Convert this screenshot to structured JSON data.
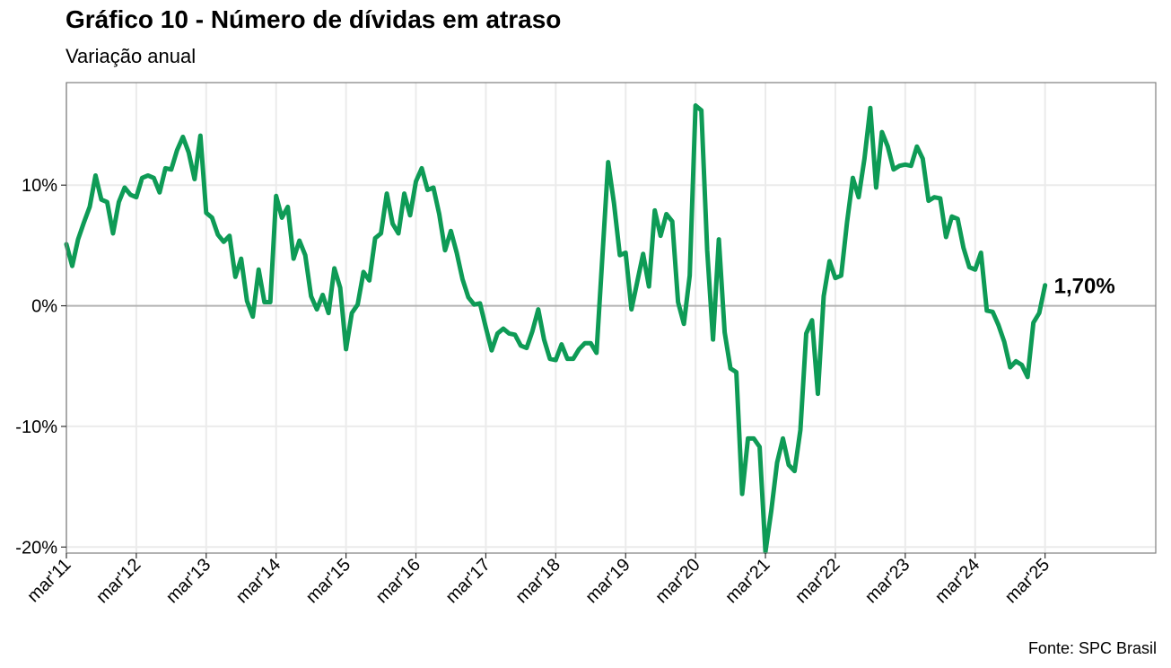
{
  "header": {
    "title": "Gráfico 10 - Número de dívidas em atraso",
    "subtitle": "Variação anual"
  },
  "footer": {
    "source": "Fonte: SPC Brasil"
  },
  "colors": {
    "line": "#0e9b56",
    "zero_line": "#b3b3b3",
    "grid": "#ebebeb",
    "frame": "#7f7f7f"
  },
  "chart_data": {
    "type": "line",
    "title": "Gráfico 10 - Número de dívidas em atraso",
    "subtitle": "Variação anual",
    "xlabel": "",
    "ylabel": "",
    "x_start": "2011-03",
    "x_end": "2025-03",
    "xlim": [
      "2011-03",
      "2026-10"
    ],
    "ylim": [
      -20.5,
      18.5
    ],
    "y_ticks": [
      10,
      0,
      -10,
      -20
    ],
    "y_tick_labels": [
      "10%",
      "0%",
      "-10%",
      "-20%"
    ],
    "x_ticks": [
      "2011-03",
      "2012-03",
      "2013-03",
      "2014-03",
      "2015-03",
      "2016-03",
      "2017-03",
      "2018-03",
      "2019-03",
      "2020-03",
      "2021-03",
      "2022-03",
      "2023-03",
      "2024-03",
      "2025-03"
    ],
    "x_tick_labels": [
      "mar'11",
      "mar'12",
      "mar'13",
      "mar'14",
      "mar'15",
      "mar'16",
      "mar'17",
      "mar'18",
      "mar'19",
      "mar'20",
      "mar'21",
      "mar'22",
      "mar'23",
      "mar'24",
      "mar'25"
    ],
    "grid": true,
    "end_label": "1,70%",
    "series": [
      {
        "values": [
          5.1,
          3.3,
          5.5,
          6.9,
          8.2,
          10.8,
          8.8,
          8.6,
          6.0,
          8.6,
          9.8,
          9.2,
          9.0,
          10.6,
          10.8,
          10.6,
          9.4,
          11.4,
          11.3,
          12.9,
          14.0,
          12.7,
          10.5,
          14.1,
          7.7,
          7.3,
          5.9,
          5.3,
          5.8,
          2.4,
          3.9,
          0.4,
          -0.9,
          3.0,
          0.3,
          0.3,
          9.1,
          7.3,
          8.2,
          3.9,
          5.4,
          4.2,
          0.8,
          -0.3,
          0.9,
          -0.6,
          3.1,
          1.5,
          -3.6,
          -0.6,
          0.1,
          2.8,
          2.1,
          5.6,
          6.0,
          9.3,
          6.8,
          6.0,
          9.3,
          7.5,
          10.3,
          11.4,
          9.6,
          9.8,
          7.6,
          4.6,
          6.2,
          4.4,
          2.2,
          0.7,
          0.1,
          0.2,
          -1.8,
          -3.7,
          -2.3,
          -1.9,
          -2.3,
          -2.4,
          -3.3,
          -3.5,
          -2.1,
          -0.3,
          -2.8,
          -4.4,
          -4.5,
          -3.2,
          -4.4,
          -4.4,
          -3.6,
          -3.1,
          -3.1,
          -3.9,
          4.0,
          11.9,
          8.5,
          4.2,
          4.4,
          -0.3,
          2.0,
          4.3,
          1.6,
          7.9,
          5.8,
          7.6,
          7.0,
          0.3,
          -1.5,
          2.5,
          16.6,
          16.2,
          4.6,
          -2.8,
          5.5,
          -2.2,
          -5.2,
          -5.5,
          -15.6,
          -11.0,
          -11.0,
          -11.7,
          -20.4,
          -17.0,
          -13.0,
          -11.0,
          -13.2,
          -13.7,
          -10.3,
          -2.3,
          -1.2,
          -7.3,
          0.8,
          3.7,
          2.3,
          2.5,
          6.9,
          10.6,
          9.0,
          12.2,
          16.4,
          9.8,
          14.4,
          13.2,
          11.3,
          11.6,
          11.7,
          11.6,
          13.2,
          12.2,
          8.7,
          9.0,
          8.9,
          5.7,
          7.4,
          7.2,
          4.8,
          3.2,
          3.0,
          4.4,
          -0.4,
          -0.5,
          -1.6,
          -3.0,
          -5.1,
          -4.6,
          -4.9,
          -5.9,
          -1.4,
          -0.6,
          1.7
        ]
      }
    ]
  }
}
